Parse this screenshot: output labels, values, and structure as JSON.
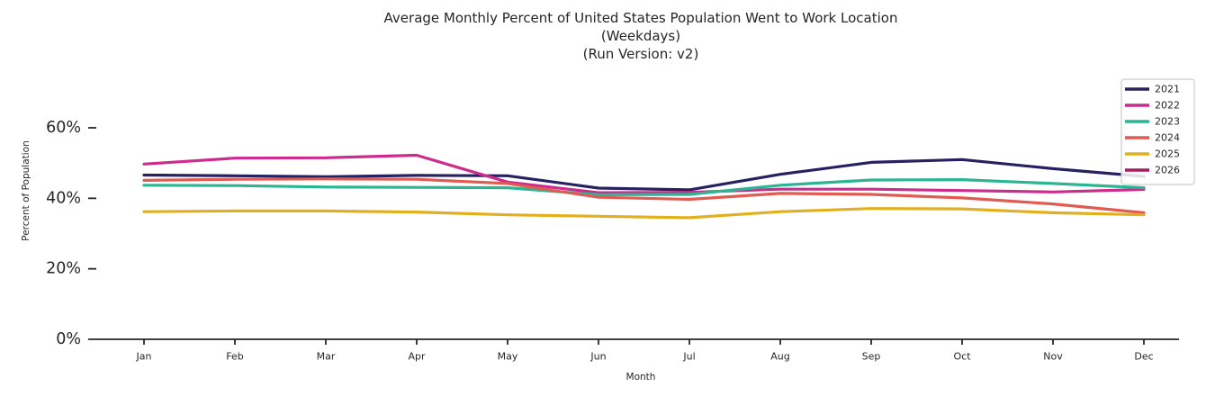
{
  "figure": {
    "background": "#ffffff",
    "text_color": "#262626",
    "axis_color": "#262626"
  },
  "chart_data": {
    "type": "line",
    "title_lines": [
      "Average Monthly Percent of United States Population Went to Work Location",
      "(Weekdays)",
      "(Run Version: v2)"
    ],
    "x": [
      "Jan",
      "Feb",
      "Mar",
      "Apr",
      "May",
      "Jun",
      "Jul",
      "Aug",
      "Sep",
      "Oct",
      "Nov",
      "Dec"
    ],
    "xlabel": "Month",
    "ylabel": "Percent of Population",
    "yticks": [
      0,
      20,
      40,
      60
    ],
    "ytick_labels": [
      "0%",
      "20%",
      "40%",
      "60%"
    ],
    "ylim": [
      0,
      73
    ],
    "grid": false,
    "legend": {
      "position": "upper right",
      "border_color": "#cccccc",
      "background": "rgba(255,255,255,0.85)"
    },
    "series": [
      {
        "name": "2021",
        "color": "#262262",
        "values": [
          46.6,
          46.4,
          46.1,
          46.5,
          46.4,
          42.9,
          42.4,
          46.8,
          50.2,
          51.0,
          48.4,
          46.2
        ]
      },
      {
        "name": "2022",
        "color": "#cc2c8e",
        "values": [
          49.7,
          51.4,
          51.5,
          52.2,
          44.6,
          41.6,
          41.7,
          42.6,
          42.6,
          42.2,
          41.8,
          42.5
        ]
      },
      {
        "name": "2023",
        "color": "#2bb593",
        "values": [
          43.7,
          43.6,
          43.2,
          43.1,
          43.0,
          41.0,
          41.1,
          43.7,
          45.2,
          45.3,
          44.2,
          43.0
        ]
      },
      {
        "name": "2024",
        "color": "#e05c52",
        "values": [
          45.1,
          45.4,
          45.5,
          45.4,
          44.2,
          40.3,
          39.7,
          41.4,
          41.1,
          40.1,
          38.4,
          35.9
        ]
      },
      {
        "name": "2025",
        "color": "#e2b01e",
        "values": [
          36.2,
          36.4,
          36.4,
          36.1,
          35.3,
          34.9,
          34.5,
          36.2,
          37.1,
          37.0,
          35.9,
          35.3
        ]
      },
      {
        "name": "2026",
        "color": "#ab1a5c",
        "values": []
      }
    ]
  }
}
